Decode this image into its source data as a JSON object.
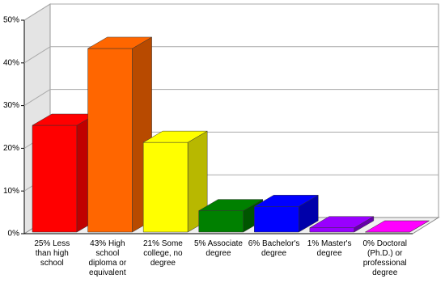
{
  "chart_data": {
    "type": "bar3d",
    "categories": [
      "25% Less than high school",
      "43% High school diploma or equivalent",
      "21% Some college, no degree",
      "5% Associate degree",
      "6% Bachelor's degree",
      "1% Master's degree",
      "0% Doctoral (Ph.D.) or professional degree"
    ],
    "values": [
      25,
      43,
      21,
      5,
      6,
      1,
      0
    ],
    "colors": [
      "#ff0000",
      "#ff6600",
      "#ffff00",
      "#008000",
      "#0000ff",
      "#9900ff",
      "#ff00ff"
    ],
    "side_colors": [
      "#c00000",
      "#b84a00",
      "#b8b800",
      "#005500",
      "#0000aa",
      "#6600aa",
      "#b000b0"
    ],
    "ylim": [
      0,
      50
    ],
    "yticks": [
      {
        "value": 0,
        "label": "0%"
      },
      {
        "value": 10,
        "label": "10%"
      },
      {
        "value": 20,
        "label": "20%"
      },
      {
        "value": 30,
        "label": "30%"
      },
      {
        "value": 40,
        "label": "40%"
      },
      {
        "value": 50,
        "label": "50%"
      }
    ],
    "grid": true
  }
}
